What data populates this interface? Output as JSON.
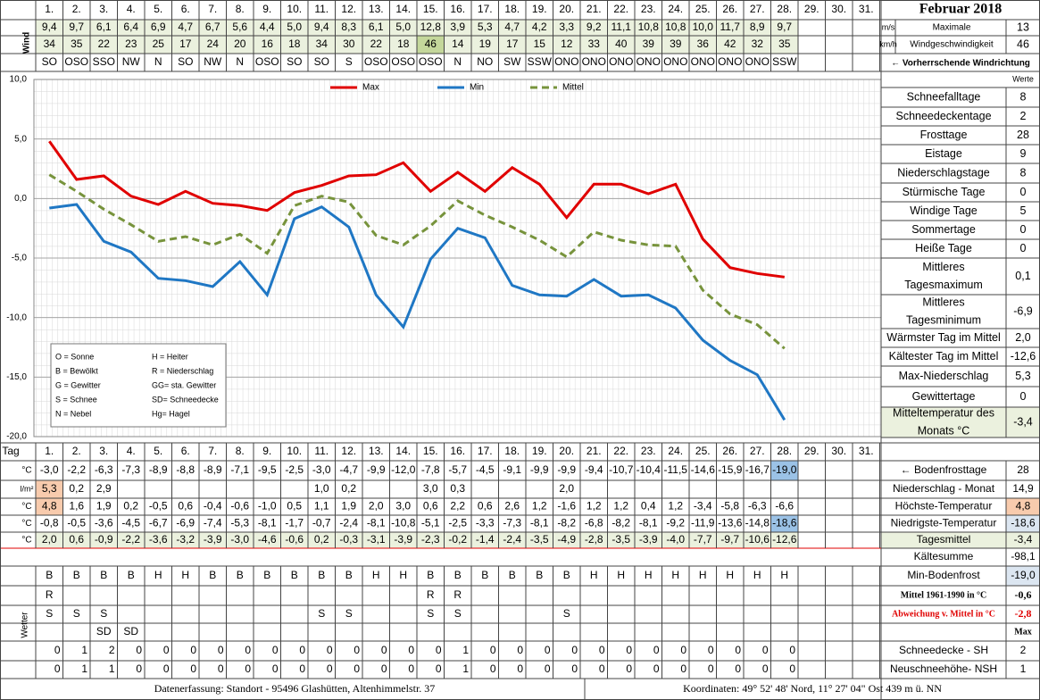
{
  "title": "Februar 2018",
  "days": [
    "1.",
    "2.",
    "3.",
    "4.",
    "5.",
    "6.",
    "7.",
    "8.",
    "9.",
    "10.",
    "11.",
    "12.",
    "13.",
    "14.",
    "15.",
    "16.",
    "17.",
    "18.",
    "19.",
    "20.",
    "21.",
    "22.",
    "23.",
    "24.",
    "25.",
    "26.",
    "27.",
    "28.",
    "29.",
    "30.",
    "31."
  ],
  "wind": {
    "label": "Wind",
    "ms": [
      "9,4",
      "9,7",
      "6,1",
      "6,4",
      "6,9",
      "4,7",
      "6,7",
      "5,6",
      "4,4",
      "5,0",
      "9,4",
      "8,3",
      "6,1",
      "5,0",
      "12,8",
      "3,9",
      "5,3",
      "4,7",
      "4,2",
      "3,3",
      "9,2",
      "11,1",
      "10,8",
      "10,8",
      "10,0",
      "11,7",
      "8,9",
      "9,7"
    ],
    "kmh": [
      "34",
      "35",
      "22",
      "23",
      "25",
      "17",
      "24",
      "20",
      "16",
      "18",
      "34",
      "30",
      "22",
      "18",
      "46",
      "14",
      "19",
      "17",
      "15",
      "12",
      "33",
      "40",
      "39",
      "39",
      "36",
      "42",
      "32",
      "35"
    ],
    "dir": [
      "SO",
      "OSO",
      "SSO",
      "NW",
      "N",
      "SO",
      "NW",
      "N",
      "OSO",
      "SO",
      "SO",
      "S",
      "OSO",
      "OSO",
      "OSO",
      "N",
      "NO",
      "SW",
      "SSW",
      "ONO",
      "ONO",
      "ONO",
      "ONO",
      "ONO",
      "ONO",
      "ONO",
      "ONO",
      "SSW"
    ],
    "max_units": [
      "m/s",
      "km/h"
    ],
    "max_label": [
      "Maximale",
      "Windgeschwindigkeit"
    ],
    "max_ms": "13",
    "max_kmh": "46",
    "dir_label": "← Vorherrschende Windrichtung"
  },
  "chart_data": {
    "type": "line",
    "ylim": [
      -20,
      10
    ],
    "yticks": [
      {
        "value": 10,
        "label": "10,0"
      },
      {
        "value": 5,
        "label": "5,0"
      },
      {
        "value": 0,
        "label": "0,0"
      },
      {
        "value": -5,
        "label": "-5,0"
      },
      {
        "value": -10,
        "label": "-10,0"
      },
      {
        "value": -15,
        "label": "-15,0"
      },
      {
        "value": -20,
        "label": "-20,0"
      }
    ],
    "grid": true,
    "series": [
      {
        "name": "Max",
        "color": "#e00000",
        "values": [
          4.8,
          1.6,
          1.9,
          0.2,
          -0.5,
          0.6,
          -0.4,
          -0.6,
          -1.0,
          0.5,
          1.1,
          1.9,
          2.0,
          3.0,
          0.6,
          2.2,
          0.6,
          2.6,
          1.2,
          -1.6,
          1.2,
          1.2,
          0.4,
          1.2,
          -3.4,
          -5.8,
          -6.3,
          -6.6
        ],
        "value_labels": [
          "4,8",
          "1,6",
          "1,9",
          "0,2",
          "-0,5",
          "0,6",
          "-0,4",
          "-0,6",
          "-1,0",
          "0,5",
          "1,1",
          "1,9",
          "2,0",
          "3,0",
          "0,6",
          "2,2",
          "0,6",
          "2,6",
          "1,2",
          "-1,6",
          "1,2",
          "1,2",
          "0,4",
          "1,2",
          "-3,4",
          "-5,8",
          "-6,3",
          "-6,6"
        ]
      },
      {
        "name": "Min",
        "color": "#1f77c4",
        "values": [
          -0.8,
          -0.5,
          -3.6,
          -4.5,
          -6.7,
          -6.9,
          -7.4,
          -5.3,
          -8.1,
          -1.7,
          -0.7,
          -2.4,
          -8.1,
          -10.8,
          -5.1,
          -2.5,
          -3.3,
          -7.3,
          -8.1,
          -8.2,
          -6.8,
          -8.2,
          -8.1,
          -9.2,
          -11.9,
          -13.6,
          -14.8,
          -18.6
        ],
        "value_labels": [
          "-0,8",
          "-0,5",
          "-3,6",
          "-4,5",
          "-6,7",
          "-6,9",
          "-7,4",
          "-5,3",
          "-8,1",
          "-1,7",
          "-0,7",
          "-2,4",
          "-8,1",
          "-10,8",
          "-5,1",
          "-2,5",
          "-3,3",
          "-7,3",
          "-8,1",
          "-8,2",
          "-6,8",
          "-8,2",
          "-8,1",
          "-9,2",
          "-11,9",
          "-13,6",
          "-14,8",
          "-18,6"
        ]
      },
      {
        "name": "Mittel",
        "color": "#77933c",
        "dashed": true,
        "values": [
          2.0,
          0.6,
          -0.9,
          -2.2,
          -3.6,
          -3.2,
          -3.9,
          -3.0,
          -4.6,
          -0.6,
          0.2,
          -0.3,
          -3.1,
          -3.9,
          -2.3,
          -0.2,
          -1.4,
          -2.4,
          -3.5,
          -4.9,
          -2.8,
          -3.5,
          -3.9,
          -4.0,
          -7.7,
          -9.7,
          -10.6,
          -12.6
        ],
        "value_labels": [
          "2,0",
          "0,6",
          "-0,9",
          "-2,2",
          "-3,6",
          "-3,2",
          "-3,9",
          "-3,0",
          "-4,6",
          "-0,6",
          "0,2",
          "-0,3",
          "-3,1",
          "-3,9",
          "-2,3",
          "-0,2",
          "-1,4",
          "-2,4",
          "-3,5",
          "-4,9",
          "-2,8",
          "-3,5",
          "-3,9",
          "-4,0",
          "-7,7",
          "-9,7",
          "-10,6",
          "-12,6"
        ]
      }
    ]
  },
  "key": [
    [
      "O = Sonne",
      "H = Heiter"
    ],
    [
      "B = Bewölkt",
      "R = Niederschlag"
    ],
    [
      "G = Gewitter",
      "GG= sta. Gewitter"
    ],
    [
      "S = Schnee",
      "SD= Schneedecke"
    ],
    [
      "N = Nebel",
      "Hg= Hagel"
    ]
  ],
  "stats": {
    "header": "Werte",
    "rows": [
      {
        "label": "Schneefalltage",
        "value": "8"
      },
      {
        "label": "Schneedeckentage",
        "value": "2"
      },
      {
        "label": "Frosttage",
        "value": "28"
      },
      {
        "label": "Eistage",
        "value": "9"
      },
      {
        "label": "Niederschlagstage",
        "value": "8"
      },
      {
        "label": "Stürmische Tage",
        "value": "0"
      },
      {
        "label": "Windige Tage",
        "value": "5"
      },
      {
        "label": "Sommertage",
        "value": "0"
      },
      {
        "label": "Heiße Tage",
        "value": "0"
      },
      {
        "label": [
          "Mittleres",
          "Tagesmaximum"
        ],
        "value": "0,1"
      },
      {
        "label": [
          "Mittleres",
          "Tagesminimum"
        ],
        "value": "-6,9"
      },
      {
        "label": "Wärmster Tag im Mittel",
        "value": "2,0"
      },
      {
        "label": "Kältester Tag im Mittel",
        "value": "-12,6"
      },
      {
        "label": "Max-Niederschlag",
        "value": "5,3"
      },
      {
        "label": "Gewittertage",
        "value": "0"
      },
      {
        "label": [
          "Mitteltemperatur des",
          "Monats °C"
        ],
        "value": "-3,4"
      }
    ]
  },
  "table": {
    "tag_label": "Tag",
    "units": [
      "°C",
      "l/m²",
      "°C",
      "°C",
      "°C"
    ],
    "bodenfrost": [
      "-3,0",
      "-2,2",
      "-6,3",
      "-7,3",
      "-8,9",
      "-8,8",
      "-8,9",
      "-7,1",
      "-9,5",
      "-2,5",
      "-3,0",
      "-4,7",
      "-9,9",
      "-12,0",
      "-7,8",
      "-5,7",
      "-4,5",
      "-9,1",
      "-9,9",
      "-9,9",
      "-9,4",
      "-10,7",
      "-10,4",
      "-11,5",
      "-14,6",
      "-15,9",
      "-16,7",
      "-19,0"
    ],
    "niederschlag": [
      "5,3",
      "0,2",
      "2,9",
      null,
      null,
      null,
      null,
      null,
      null,
      null,
      "1,0",
      "0,2",
      null,
      null,
      "3,0",
      "0,3",
      null,
      null,
      null,
      "2,0",
      null,
      null,
      null,
      null,
      null,
      null,
      null,
      null
    ],
    "wetter_label": "Wetter",
    "wetter": [
      [
        "B",
        "B",
        "B",
        "B",
        "H",
        "H",
        "B",
        "B",
        "B",
        "B",
        "B",
        "B",
        "H",
        "H",
        "B",
        "B",
        "B",
        "B",
        "B",
        "B",
        "H",
        "H",
        "H",
        "H",
        "H",
        "H",
        "H",
        "H"
      ],
      [
        "R",
        null,
        null,
        null,
        null,
        null,
        null,
        null,
        null,
        null,
        null,
        null,
        null,
        null,
        "R",
        "R",
        null,
        null,
        null,
        null,
        null,
        null,
        null,
        null,
        null,
        null,
        null,
        null
      ],
      [
        "S",
        "S",
        "S",
        null,
        null,
        null,
        null,
        null,
        null,
        null,
        "S",
        "S",
        null,
        null,
        "S",
        "S",
        null,
        null,
        null,
        "S",
        null,
        null,
        null,
        null,
        null,
        null,
        null,
        null
      ],
      [
        null,
        null,
        "SD",
        "SD",
        null,
        null,
        null,
        null,
        null,
        null,
        null,
        null,
        null,
        null,
        null,
        null,
        null,
        null,
        null,
        null,
        null,
        null,
        null,
        null,
        null,
        null,
        null,
        null
      ]
    ],
    "sh": [
      "0",
      "1",
      "2",
      "0",
      "0",
      "0",
      "0",
      "0",
      "0",
      "0",
      "0",
      "0",
      "0",
      "0",
      "0",
      "1",
      "0",
      "0",
      "0",
      "0",
      "0",
      "0",
      "0",
      "0",
      "0",
      "0",
      "0",
      "0"
    ],
    "nsh": [
      "0",
      "1",
      "1",
      "0",
      "0",
      "0",
      "0",
      "0",
      "0",
      "0",
      "0",
      "0",
      "0",
      "0",
      "0",
      "1",
      "0",
      "0",
      "0",
      "0",
      "0",
      "0",
      "0",
      "0",
      "0",
      "0",
      "0",
      "0"
    ]
  },
  "summary": [
    {
      "label": "← Bodenfrosttage",
      "value": "28"
    },
    {
      "label": "Niederschlag - Monat",
      "value": "14,9"
    },
    {
      "label": "Höchste-Temperatur",
      "value": "4,8"
    },
    {
      "label": "Niedrigste-Temperatur",
      "value": "-18,6"
    },
    {
      "label": "Tagesmittel",
      "value": "-3,4"
    },
    {
      "label": "Kältesumme",
      "value": "-98,1"
    },
    {
      "label": "Min-Bodenfrost",
      "value": "-19,0"
    },
    {
      "label": "Mittel 1961-1990 in °C",
      "value": "-0,6"
    },
    {
      "label": "Abweichung v. Mittel in °C",
      "value": "-2,8"
    },
    {
      "value": "Max"
    },
    {
      "label": "Schneedecke - SH",
      "value": "2"
    },
    {
      "label": "Neuschneehöhe- NSH",
      "value": "1"
    }
  ],
  "footer": {
    "left": "Datenerfassung:  Standort -  95496  Glashütten,  Altenhimmelstr. 37",
    "right": "Koordinaten:  49° 52' 48' Nord,   11° 27' 04\" Ost   439 m ü. NN"
  }
}
